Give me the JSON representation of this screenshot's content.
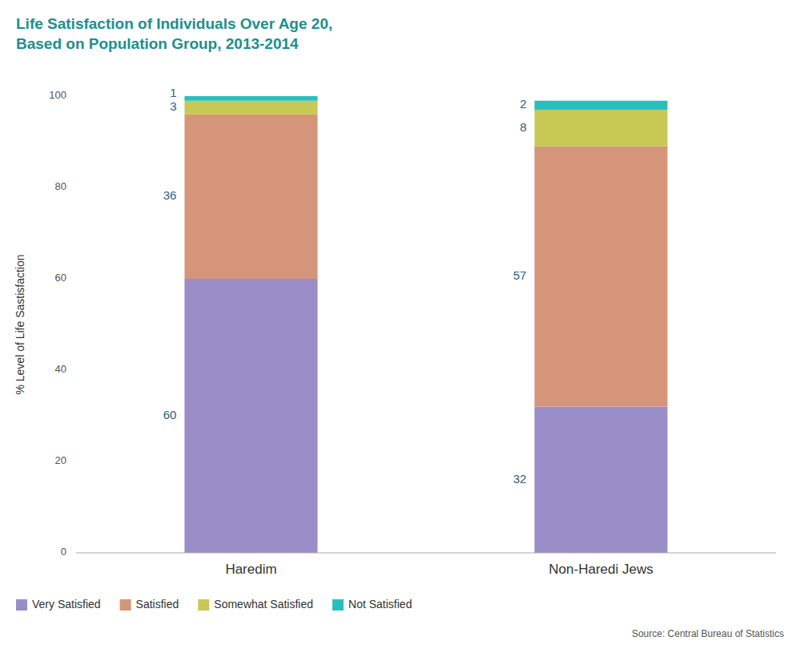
{
  "chart_data": {
    "type": "bar",
    "stacked": true,
    "data_labels": true,
    "grid": false,
    "legend": "bottom",
    "title": "Life Satisfaction of Individuals Over Age 20,\nBased on Population Group, 2013-2014",
    "ylabel": "% Level of Life Sastisfaction",
    "annotations": [
      "Source: Central Bureau of Statistics"
    ],
    "categories": [
      "Haredim",
      "Non-Haredi Jews"
    ],
    "series": [
      {
        "name": "Very Satisfied",
        "color": "#9B8DC8",
        "values": [
          60,
          32
        ]
      },
      {
        "name": "Satisfied",
        "color": "#D4957A",
        "values": [
          36,
          57
        ]
      },
      {
        "name": "Somewhat Satisfied",
        "color": "#C8C855",
        "values": [
          3,
          8
        ]
      },
      {
        "name": "Not Satisfied",
        "color": "#2ABFBF",
        "values": [
          1,
          2
        ]
      }
    ],
    "ylim": [
      0,
      100
    ],
    "yticks": [
      0,
      20,
      40,
      60,
      80,
      100
    ]
  }
}
